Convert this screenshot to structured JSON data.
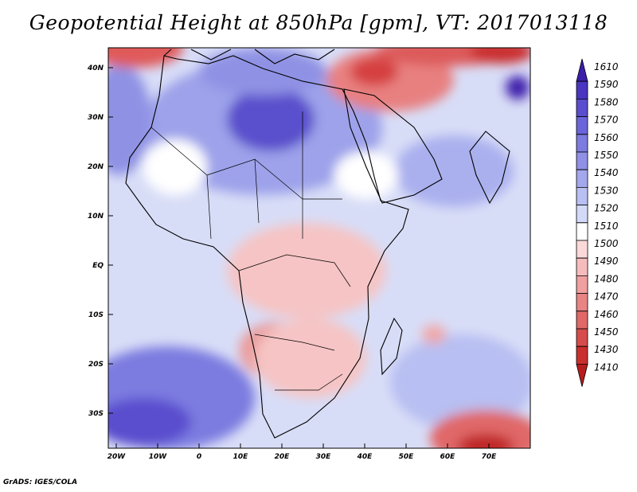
{
  "title": "Geopotential Height at 850hPa [gpm], VT: 2017013118",
  "footer": "GrADS: IGES/COLA",
  "map": {
    "lat_labels": [
      "40N",
      "30N",
      "20N",
      "10N",
      "EQ",
      "10S",
      "20S",
      "30S"
    ],
    "lon_labels": [
      "20W",
      "10W",
      "0",
      "10E",
      "20E",
      "30E",
      "40E",
      "50E",
      "60E",
      "70E"
    ]
  },
  "colorbar": {
    "levels": [
      "1610",
      "1590",
      "1580",
      "1570",
      "1560",
      "1550",
      "1540",
      "1530",
      "1520",
      "1510",
      "1500",
      "1490",
      "1480",
      "1470",
      "1460",
      "1450",
      "1430",
      "1410"
    ],
    "colors": [
      "#3c1eaa",
      "#4a35c0",
      "#5a4dce",
      "#6a65d8",
      "#7c7be0",
      "#8f90e6",
      "#a3a7ec",
      "#b8bff2",
      "#d3daf8",
      "#ffffff",
      "#fbd9d9",
      "#f6bcbc",
      "#f0a0a0",
      "#e98484",
      "#e06868",
      "#d64b4b",
      "#ca2f2f",
      "#b81d1d"
    ]
  }
}
